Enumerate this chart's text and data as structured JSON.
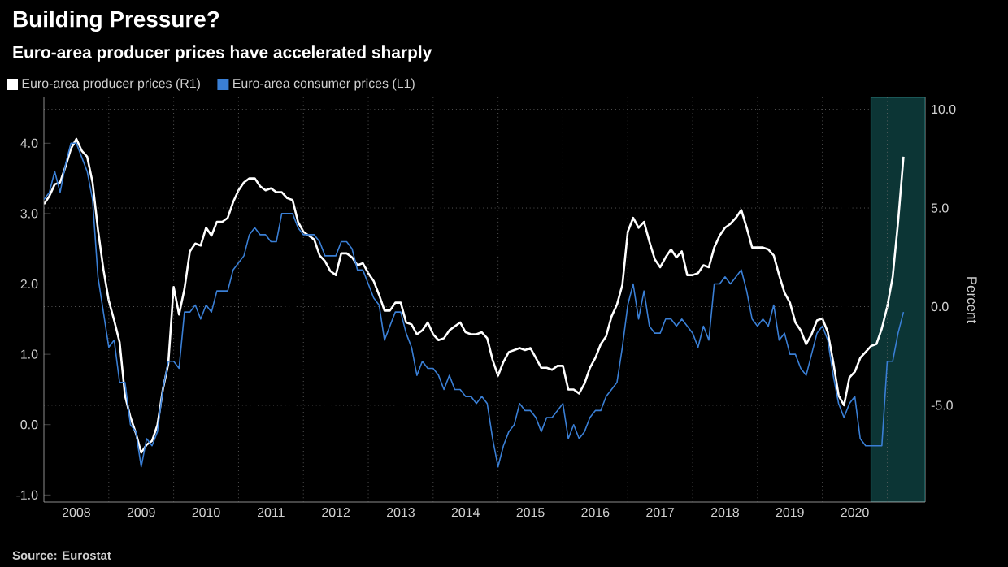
{
  "chart_data": {
    "type": "line",
    "title": "Building Pressure?",
    "subtitle": "Euro-area producer prices have accelerated sharply",
    "annotations": [
      "Source: Eurostat"
    ],
    "y2label": "Percent",
    "legend": "top left",
    "grid": true,
    "x": [
      "2008-01",
      "2008-02",
      "2008-03",
      "2008-04",
      "2008-05",
      "2008-06",
      "2008-07",
      "2008-08",
      "2008-09",
      "2008-10",
      "2008-11",
      "2008-12",
      "2009-01",
      "2009-02",
      "2009-03",
      "2009-04",
      "2009-05",
      "2009-06",
      "2009-07",
      "2009-08",
      "2009-09",
      "2009-10",
      "2009-11",
      "2009-12",
      "2010-01",
      "2010-02",
      "2010-03",
      "2010-04",
      "2010-05",
      "2010-06",
      "2010-07",
      "2010-08",
      "2010-09",
      "2010-10",
      "2010-11",
      "2010-12",
      "2011-01",
      "2011-02",
      "2011-03",
      "2011-04",
      "2011-05",
      "2011-06",
      "2011-07",
      "2011-08",
      "2011-09",
      "2011-10",
      "2011-11",
      "2011-12",
      "2012-01",
      "2012-02",
      "2012-03",
      "2012-04",
      "2012-05",
      "2012-06",
      "2012-07",
      "2012-08",
      "2012-09",
      "2012-10",
      "2012-11",
      "2012-12",
      "2013-01",
      "2013-02",
      "2013-03",
      "2013-04",
      "2013-05",
      "2013-06",
      "2013-07",
      "2013-08",
      "2013-09",
      "2013-10",
      "2013-11",
      "2013-12",
      "2014-01",
      "2014-02",
      "2014-03",
      "2014-04",
      "2014-05",
      "2014-06",
      "2014-07",
      "2014-08",
      "2014-09",
      "2014-10",
      "2014-11",
      "2014-12",
      "2015-01",
      "2015-02",
      "2015-03",
      "2015-04",
      "2015-05",
      "2015-06",
      "2015-07",
      "2015-08",
      "2015-09",
      "2015-10",
      "2015-11",
      "2015-12",
      "2016-01",
      "2016-02",
      "2016-03",
      "2016-04",
      "2016-05",
      "2016-06",
      "2016-07",
      "2016-08",
      "2016-09",
      "2016-10",
      "2016-11",
      "2016-12",
      "2017-01",
      "2017-02",
      "2017-03",
      "2017-04",
      "2017-05",
      "2017-06",
      "2017-07",
      "2017-08",
      "2017-09",
      "2017-10",
      "2017-11",
      "2017-12",
      "2018-01",
      "2018-02",
      "2018-03",
      "2018-04",
      "2018-05",
      "2018-06",
      "2018-07",
      "2018-08",
      "2018-09",
      "2018-10",
      "2018-11",
      "2018-12",
      "2019-01",
      "2019-02",
      "2019-03",
      "2019-04",
      "2019-05",
      "2019-06",
      "2019-07",
      "2019-08",
      "2019-09",
      "2019-10",
      "2019-11",
      "2019-12",
      "2020-01",
      "2020-02",
      "2020-03",
      "2020-04",
      "2020-05",
      "2020-06",
      "2020-07",
      "2020-08",
      "2020-09",
      "2020-10",
      "2020-11",
      "2020-12",
      "2021-01",
      "2021-02",
      "2021-03",
      "2021-04"
    ],
    "series": [
      {
        "name": "Euro-area producer prices (R1)",
        "color": "#ffffff",
        "axis": "y2",
        "values": [
          5.2,
          5.6,
          6.2,
          6.3,
          7.1,
          8.0,
          8.5,
          7.9,
          7.6,
          6.3,
          3.9,
          1.9,
          0.3,
          -0.7,
          -1.8,
          -4.5,
          -5.6,
          -6.4,
          -7.4,
          -7.0,
          -6.8,
          -6.0,
          -4.2,
          -2.9,
          1.0,
          -0.4,
          0.9,
          2.8,
          3.2,
          3.1,
          4.0,
          3.6,
          4.3,
          4.3,
          4.5,
          5.3,
          5.9,
          6.3,
          6.5,
          6.5,
          6.1,
          5.9,
          6.0,
          5.8,
          5.8,
          5.5,
          5.4,
          4.3,
          3.8,
          3.6,
          3.4,
          2.6,
          2.3,
          1.8,
          1.6,
          2.7,
          2.7,
          2.5,
          2.1,
          2.2,
          1.7,
          1.3,
          0.6,
          -0.2,
          -0.2,
          0.2,
          0.2,
          -0.8,
          -0.9,
          -1.4,
          -1.2,
          -0.8,
          -1.4,
          -1.7,
          -1.6,
          -1.2,
          -1.0,
          -0.8,
          -1.3,
          -1.4,
          -1.4,
          -1.3,
          -1.6,
          -2.7,
          -3.5,
          -2.8,
          -2.3,
          -2.2,
          -2.1,
          -2.2,
          -2.1,
          -2.6,
          -3.1,
          -3.1,
          -3.2,
          -3.0,
          -3.0,
          -4.2,
          -4.2,
          -4.4,
          -3.9,
          -3.1,
          -2.6,
          -1.9,
          -1.5,
          -0.5,
          0.1,
          1.1,
          3.8,
          4.5,
          4.0,
          4.3,
          3.3,
          2.4,
          2.0,
          2.5,
          2.9,
          2.5,
          2.8,
          1.6,
          1.6,
          1.7,
          2.1,
          2.0,
          3.0,
          3.6,
          4.0,
          4.2,
          4.5,
          4.9,
          4.0,
          3.0,
          3.0,
          3.0,
          2.9,
          2.6,
          1.6,
          0.7,
          0.2,
          -0.8,
          -1.2,
          -1.9,
          -1.4,
          -0.7,
          -0.6,
          -1.3,
          -2.8,
          -4.5,
          -5.0,
          -3.6,
          -3.3,
          -2.6,
          -2.3,
          -2.0,
          -1.9,
          -1.1,
          0.0,
          1.5,
          4.3,
          7.6
        ]
      },
      {
        "name": "Euro-area consumer prices (L1)",
        "color": "#3a7fd5",
        "values": [
          3.2,
          3.3,
          3.6,
          3.3,
          3.7,
          4.0,
          4.0,
          3.8,
          3.6,
          3.2,
          2.1,
          1.6,
          1.1,
          1.2,
          0.6,
          0.6,
          0.0,
          -0.1,
          -0.6,
          -0.2,
          -0.3,
          -0.1,
          0.5,
          0.9,
          0.9,
          0.8,
          1.6,
          1.6,
          1.7,
          1.5,
          1.7,
          1.6,
          1.9,
          1.9,
          1.9,
          2.2,
          2.3,
          2.4,
          2.7,
          2.8,
          2.7,
          2.7,
          2.6,
          2.6,
          3.0,
          3.0,
          3.0,
          2.8,
          2.7,
          2.7,
          2.7,
          2.6,
          2.4,
          2.4,
          2.4,
          2.6,
          2.6,
          2.5,
          2.2,
          2.2,
          2.0,
          1.8,
          1.7,
          1.2,
          1.4,
          1.6,
          1.6,
          1.3,
          1.1,
          0.7,
          0.9,
          0.8,
          0.8,
          0.7,
          0.5,
          0.7,
          0.5,
          0.5,
          0.4,
          0.4,
          0.3,
          0.4,
          0.3,
          -0.2,
          -0.6,
          -0.3,
          -0.1,
          0.0,
          0.3,
          0.2,
          0.2,
          0.1,
          -0.1,
          0.1,
          0.1,
          0.2,
          0.3,
          -0.2,
          0.0,
          -0.2,
          -0.1,
          0.1,
          0.2,
          0.2,
          0.4,
          0.5,
          0.6,
          1.1,
          1.7,
          2.0,
          1.5,
          1.9,
          1.4,
          1.3,
          1.3,
          1.5,
          1.5,
          1.4,
          1.5,
          1.4,
          1.3,
          1.1,
          1.4,
          1.2,
          2.0,
          2.0,
          2.1,
          2.0,
          2.1,
          2.2,
          1.9,
          1.5,
          1.4,
          1.5,
          1.4,
          1.7,
          1.2,
          1.3,
          1.0,
          1.0,
          0.8,
          0.7,
          1.0,
          1.3,
          1.4,
          1.2,
          0.7,
          0.3,
          0.1,
          0.3,
          0.4,
          -0.2,
          -0.3,
          -0.3,
          -0.3,
          -0.3,
          0.9,
          0.9,
          1.3,
          1.6
        ]
      }
    ],
    "xlim": [
      "2008-01",
      "2021-08"
    ],
    "xticks": [
      {
        "value": "2008-07",
        "label": "2008"
      },
      {
        "value": "2009-07",
        "label": "2009"
      },
      {
        "value": "2010-07",
        "label": "2010"
      },
      {
        "value": "2011-07",
        "label": "2011"
      },
      {
        "value": "2012-07",
        "label": "2012"
      },
      {
        "value": "2013-07",
        "label": "2013"
      },
      {
        "value": "2014-07",
        "label": "2014"
      },
      {
        "value": "2015-07",
        "label": "2015"
      },
      {
        "value": "2016-07",
        "label": "2016"
      },
      {
        "value": "2017-07",
        "label": "2017"
      },
      {
        "value": "2018-07",
        "label": "2018"
      },
      {
        "value": "2019-07",
        "label": "2019"
      },
      {
        "value": "2020-07",
        "label": "2020"
      },
      {
        "value": "2009-01",
        "label": null
      },
      {
        "value": "2010-01",
        "label": null
      },
      {
        "value": "2011-01",
        "label": null
      },
      {
        "value": "2012-01",
        "label": null
      },
      {
        "value": "2013-01",
        "label": null
      },
      {
        "value": "2014-01",
        "label": null
      },
      {
        "value": "2015-01",
        "label": null
      },
      {
        "value": "2016-01",
        "label": null
      },
      {
        "value": "2017-01",
        "label": null
      },
      {
        "value": "2018-01",
        "label": null
      },
      {
        "value": "2019-01",
        "label": null
      },
      {
        "value": "2020-01",
        "label": null
      },
      {
        "value": "2021-01",
        "label": null
      }
    ],
    "ylim": [
      -1.1,
      4.65
    ],
    "yticks": [
      {
        "value": -1,
        "label": "-1.0"
      },
      {
        "value": 0,
        "label": "0.0"
      },
      {
        "value": 1,
        "label": "1.0"
      },
      {
        "value": 2,
        "label": "2.0"
      },
      {
        "value": 3,
        "label": "3.0"
      },
      {
        "value": 4,
        "label": "4.0"
      }
    ],
    "y2lim": [
      -9.9,
      10.6
    ],
    "y2ticks": [
      {
        "value": -5,
        "label": "-5.0"
      },
      {
        "value": 0,
        "label": "0.0"
      },
      {
        "value": 5,
        "label": "5.0"
      },
      {
        "value": 10,
        "label": "10.0"
      }
    ],
    "bands": [
      {
        "axis": "x",
        "from": "2020-10",
        "to": "2021-08",
        "color": "#0c3535"
      }
    ]
  }
}
